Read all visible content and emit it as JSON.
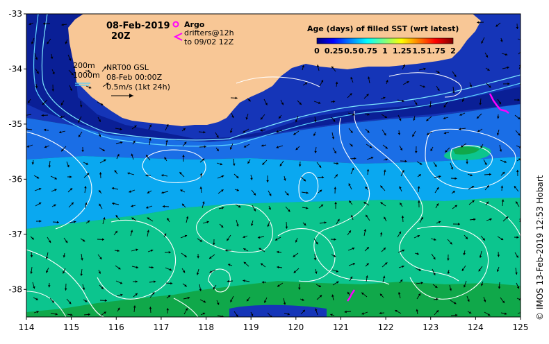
{
  "map": {
    "date": "08-Feb-2019",
    "time": "20Z",
    "legend_argo": "Argo",
    "legend_drifters_1": "drifters@12h",
    "legend_drifters_2": "to 09/02 12Z",
    "isobath_200": "200m",
    "isobath_1000": "1000m",
    "product": "NRT00 GSL",
    "product_time": "08-Feb 00:00Z",
    "vector_scale": "0.5m/s (1kt 24h)",
    "colorbar_title": "Age (days) of filled SST (wrt latest)",
    "colorbar_ticks": [
      "0",
      "0.25",
      "0.5",
      "0.75",
      "1",
      "1.25",
      "1.5",
      "1.75",
      "2"
    ],
    "credit": "© IMOS 13-Feb-2019 12:53 Hobart",
    "x_ticks": [
      "114",
      "115",
      "116",
      "117",
      "118",
      "119",
      "120",
      "121",
      "122",
      "123",
      "124",
      "125"
    ],
    "y_ticks": [
      "-33",
      "-34",
      "-35",
      "-36",
      "-37",
      "-38"
    ],
    "xlim": [
      114,
      125
    ],
    "ylim": [
      -38.5,
      -33
    ],
    "colors": {
      "land": "#f8c796",
      "deep_navy": "#0a1f96",
      "navy": "#1535b8",
      "blue": "#1a6ee6",
      "sky": "#0aa8f0",
      "teal": "#0cc58e",
      "green": "#10a84a",
      "drifter": "#ff00ff"
    }
  }
}
